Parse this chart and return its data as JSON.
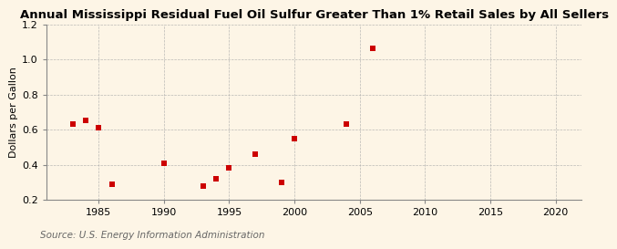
{
  "title": "Annual Mississippi Residual Fuel Oil Sulfur Greater Than 1% Retail Sales by All Sellers",
  "ylabel": "Dollars per Gallon",
  "source": "Source: U.S. Energy Information Administration",
  "xlim": [
    1981,
    2022
  ],
  "ylim": [
    0.2,
    1.2
  ],
  "xticks": [
    1985,
    1990,
    1995,
    2000,
    2005,
    2010,
    2015,
    2020
  ],
  "yticks": [
    0.2,
    0.4,
    0.6,
    0.8,
    1.0,
    1.2
  ],
  "data_x": [
    1983,
    1984,
    1985,
    1986,
    1990,
    1993,
    1994,
    1995,
    1997,
    1999,
    2000,
    2004,
    2006
  ],
  "data_y": [
    0.63,
    0.65,
    0.61,
    0.29,
    0.41,
    0.28,
    0.32,
    0.38,
    0.46,
    0.3,
    0.55,
    0.63,
    1.06
  ],
  "marker_color": "#cc0000",
  "marker": "s",
  "marker_size": 16,
  "bg_color": "#fdf5e6",
  "plot_bg_color": "#fdf5e6",
  "grid_color": "#aaaaaa",
  "title_fontsize": 9.5,
  "label_fontsize": 8,
  "tick_fontsize": 8,
  "source_fontsize": 7.5,
  "spine_color": "#888888"
}
